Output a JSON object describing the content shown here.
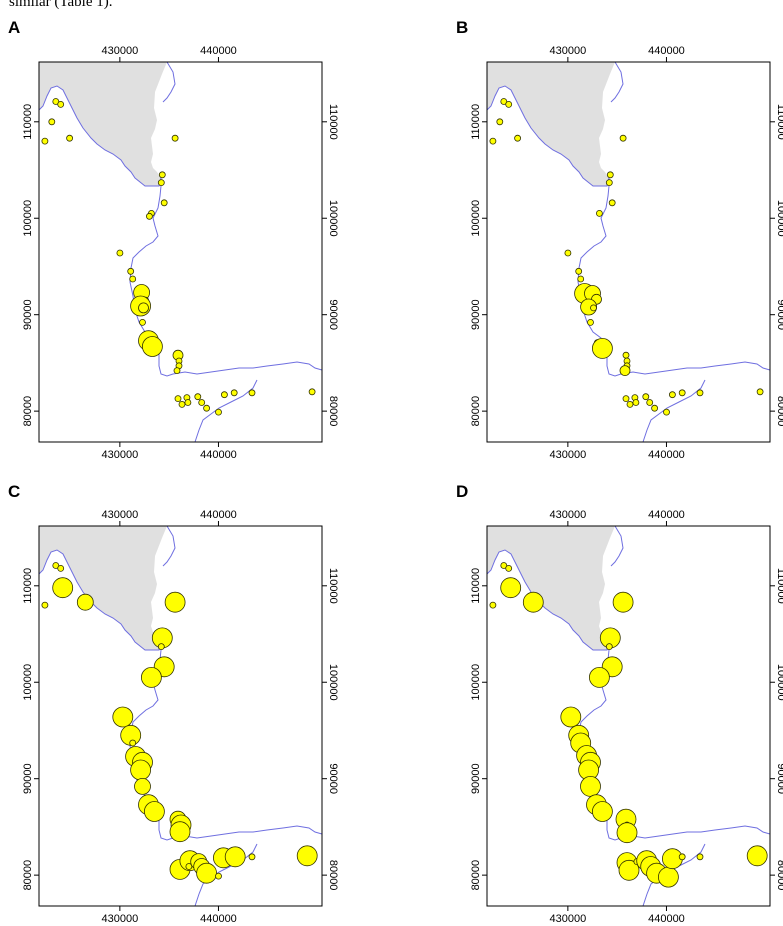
{
  "text": {
    "intro_fragment": "similar (Table 1)."
  },
  "colors": {
    "land": "#e0e0e0",
    "coast": "#6f6fe0",
    "point_fill": "#ffff00",
    "point_stroke": "#333300"
  },
  "axes": {
    "x_ticks": [
      "430000",
      "440000"
    ],
    "y_ticks": [
      "110000",
      "100000",
      "90000",
      "80000"
    ]
  },
  "chart_data": [
    {
      "type": "scatter",
      "panel_label": "A",
      "xlim": [
        421800,
        450500
      ],
      "ylim": [
        76800,
        116200
      ],
      "x_tick_values": [
        430000,
        440000
      ],
      "y_tick_values": [
        110000,
        100000,
        90000,
        80000
      ],
      "point_size_note": "symbol size proportional to value",
      "points": [
        {
          "x": 422400,
          "y": 108000,
          "s": 1
        },
        {
          "x": 423100,
          "y": 110000,
          "s": 1
        },
        {
          "x": 423500,
          "y": 112100,
          "s": 1
        },
        {
          "x": 424000,
          "y": 111800,
          "s": 1
        },
        {
          "x": 424900,
          "y": 108300,
          "s": 1
        },
        {
          "x": 435600,
          "y": 108300,
          "s": 1
        },
        {
          "x": 434300,
          "y": 104500,
          "s": 1
        },
        {
          "x": 434200,
          "y": 103700,
          "s": 1
        },
        {
          "x": 434500,
          "y": 101600,
          "s": 1
        },
        {
          "x": 433200,
          "y": 100500,
          "s": 1
        },
        {
          "x": 433000,
          "y": 100200,
          "s": 1
        },
        {
          "x": 430000,
          "y": 96400,
          "s": 1
        },
        {
          "x": 431100,
          "y": 94500,
          "s": 1
        },
        {
          "x": 431300,
          "y": 93700,
          "s": 1
        },
        {
          "x": 432200,
          "y": 92300,
          "s": 3
        },
        {
          "x": 432600,
          "y": 91500,
          "s": 1
        },
        {
          "x": 432100,
          "y": 90900,
          "s": 4
        },
        {
          "x": 432400,
          "y": 90700,
          "s": 2
        },
        {
          "x": 432300,
          "y": 89200,
          "s": 1
        },
        {
          "x": 432900,
          "y": 87300,
          "s": 4
        },
        {
          "x": 433300,
          "y": 86700,
          "s": 4
        },
        {
          "x": 435900,
          "y": 85800,
          "s": 2
        },
        {
          "x": 436000,
          "y": 85200,
          "s": 1
        },
        {
          "x": 436000,
          "y": 84700,
          "s": 1
        },
        {
          "x": 435800,
          "y": 84200,
          "s": 1
        },
        {
          "x": 435900,
          "y": 81300,
          "s": 1
        },
        {
          "x": 436300,
          "y": 80700,
          "s": 1
        },
        {
          "x": 436800,
          "y": 81400,
          "s": 1
        },
        {
          "x": 436900,
          "y": 80900,
          "s": 1
        },
        {
          "x": 437900,
          "y": 81500,
          "s": 1
        },
        {
          "x": 438300,
          "y": 80900,
          "s": 1
        },
        {
          "x": 438800,
          "y": 80300,
          "s": 1
        },
        {
          "x": 440000,
          "y": 79900,
          "s": 1
        },
        {
          "x": 440600,
          "y": 81700,
          "s": 1
        },
        {
          "x": 441600,
          "y": 81900,
          "s": 1
        },
        {
          "x": 443400,
          "y": 81900,
          "s": 1
        },
        {
          "x": 449500,
          "y": 82000,
          "s": 1
        }
      ]
    },
    {
      "type": "scatter",
      "panel_label": "B",
      "xlim": [
        421800,
        450500
      ],
      "ylim": [
        76800,
        116200
      ],
      "x_tick_values": [
        430000,
        440000
      ],
      "y_tick_values": [
        110000,
        100000,
        90000,
        80000
      ],
      "point_size_note": "symbol size proportional to value",
      "points": [
        {
          "x": 422400,
          "y": 108000,
          "s": 1
        },
        {
          "x": 423100,
          "y": 110000,
          "s": 1
        },
        {
          "x": 423500,
          "y": 112100,
          "s": 1
        },
        {
          "x": 424000,
          "y": 111800,
          "s": 1
        },
        {
          "x": 424900,
          "y": 108300,
          "s": 1
        },
        {
          "x": 435600,
          "y": 108300,
          "s": 1
        },
        {
          "x": 434300,
          "y": 104500,
          "s": 1
        },
        {
          "x": 434200,
          "y": 103700,
          "s": 1
        },
        {
          "x": 434500,
          "y": 101600,
          "s": 1
        },
        {
          "x": 433200,
          "y": 100500,
          "s": 1
        },
        {
          "x": 430000,
          "y": 96400,
          "s": 1
        },
        {
          "x": 431100,
          "y": 94500,
          "s": 1
        },
        {
          "x": 431300,
          "y": 93700,
          "s": 1
        },
        {
          "x": 431700,
          "y": 92200,
          "s": 4
        },
        {
          "x": 432500,
          "y": 92200,
          "s": 3
        },
        {
          "x": 432900,
          "y": 91600,
          "s": 2
        },
        {
          "x": 432100,
          "y": 90800,
          "s": 3
        },
        {
          "x": 432600,
          "y": 90700,
          "s": 1
        },
        {
          "x": 432300,
          "y": 89200,
          "s": 1
        },
        {
          "x": 433000,
          "y": 87100,
          "s": 1
        },
        {
          "x": 433500,
          "y": 86500,
          "s": 4
        },
        {
          "x": 435900,
          "y": 85800,
          "s": 1
        },
        {
          "x": 436000,
          "y": 85200,
          "s": 1
        },
        {
          "x": 436000,
          "y": 84700,
          "s": 1
        },
        {
          "x": 435800,
          "y": 84200,
          "s": 2
        },
        {
          "x": 435900,
          "y": 81300,
          "s": 1
        },
        {
          "x": 436300,
          "y": 80700,
          "s": 1
        },
        {
          "x": 436800,
          "y": 81400,
          "s": 1
        },
        {
          "x": 436900,
          "y": 80900,
          "s": 1
        },
        {
          "x": 437900,
          "y": 81500,
          "s": 1
        },
        {
          "x": 438300,
          "y": 80900,
          "s": 1
        },
        {
          "x": 438800,
          "y": 80300,
          "s": 1
        },
        {
          "x": 440000,
          "y": 79900,
          "s": 1
        },
        {
          "x": 440600,
          "y": 81700,
          "s": 1
        },
        {
          "x": 441600,
          "y": 81900,
          "s": 1
        },
        {
          "x": 443400,
          "y": 81900,
          "s": 1
        },
        {
          "x": 449500,
          "y": 82000,
          "s": 1
        }
      ]
    },
    {
      "type": "scatter",
      "panel_label": "C",
      "xlim": [
        421800,
        450500
      ],
      "ylim": [
        76800,
        116200
      ],
      "x_tick_values": [
        430000,
        440000
      ],
      "y_tick_values": [
        110000,
        100000,
        90000,
        80000
      ],
      "point_size_note": "symbol size proportional to value",
      "points": [
        {
          "x": 422400,
          "y": 108000,
          "s": 1
        },
        {
          "x": 424200,
          "y": 109800,
          "s": 4
        },
        {
          "x": 423500,
          "y": 112100,
          "s": 1
        },
        {
          "x": 424000,
          "y": 111800,
          "s": 1
        },
        {
          "x": 426500,
          "y": 108300,
          "s": 3
        },
        {
          "x": 435600,
          "y": 108300,
          "s": 4
        },
        {
          "x": 434300,
          "y": 104600,
          "s": 4
        },
        {
          "x": 434200,
          "y": 103700,
          "s": 1
        },
        {
          "x": 434500,
          "y": 101600,
          "s": 4
        },
        {
          "x": 433200,
          "y": 100500,
          "s": 4
        },
        {
          "x": 430300,
          "y": 96400,
          "s": 4
        },
        {
          "x": 431100,
          "y": 94500,
          "s": 4
        },
        {
          "x": 431300,
          "y": 93700,
          "s": 1
        },
        {
          "x": 431600,
          "y": 92300,
          "s": 4
        },
        {
          "x": 432300,
          "y": 91700,
          "s": 4
        },
        {
          "x": 432100,
          "y": 90900,
          "s": 4
        },
        {
          "x": 432300,
          "y": 89200,
          "s": 3
        },
        {
          "x": 432900,
          "y": 87300,
          "s": 4
        },
        {
          "x": 433500,
          "y": 86600,
          "s": 4
        },
        {
          "x": 435900,
          "y": 85800,
          "s": 3
        },
        {
          "x": 436200,
          "y": 85200,
          "s": 4
        },
        {
          "x": 436100,
          "y": 84500,
          "s": 4
        },
        {
          "x": 436100,
          "y": 80600,
          "s": 4
        },
        {
          "x": 437100,
          "y": 81500,
          "s": 4
        },
        {
          "x": 437000,
          "y": 80900,
          "s": 1
        },
        {
          "x": 438000,
          "y": 81400,
          "s": 3
        },
        {
          "x": 438300,
          "y": 80900,
          "s": 3
        },
        {
          "x": 438800,
          "y": 80200,
          "s": 4
        },
        {
          "x": 440000,
          "y": 79900,
          "s": 1
        },
        {
          "x": 440500,
          "y": 81800,
          "s": 4
        },
        {
          "x": 441700,
          "y": 81900,
          "s": 4
        },
        {
          "x": 443400,
          "y": 81900,
          "s": 1
        },
        {
          "x": 449000,
          "y": 82000,
          "s": 4
        }
      ]
    },
    {
      "type": "scatter",
      "panel_label": "D",
      "xlim": [
        421800,
        450500
      ],
      "ylim": [
        76800,
        116200
      ],
      "x_tick_values": [
        430000,
        440000
      ],
      "y_tick_values": [
        110000,
        100000,
        90000,
        80000
      ],
      "point_size_note": "symbol size proportional to value",
      "points": [
        {
          "x": 422400,
          "y": 108000,
          "s": 1
        },
        {
          "x": 424200,
          "y": 109800,
          "s": 4
        },
        {
          "x": 423500,
          "y": 112100,
          "s": 1
        },
        {
          "x": 424000,
          "y": 111800,
          "s": 1
        },
        {
          "x": 426500,
          "y": 108300,
          "s": 4
        },
        {
          "x": 435600,
          "y": 108300,
          "s": 4
        },
        {
          "x": 434300,
          "y": 104600,
          "s": 4
        },
        {
          "x": 434200,
          "y": 103700,
          "s": 1
        },
        {
          "x": 434500,
          "y": 101600,
          "s": 4
        },
        {
          "x": 433200,
          "y": 100500,
          "s": 4
        },
        {
          "x": 430300,
          "y": 96400,
          "s": 4
        },
        {
          "x": 431100,
          "y": 94500,
          "s": 4
        },
        {
          "x": 431300,
          "y": 93700,
          "s": 4
        },
        {
          "x": 431900,
          "y": 92400,
          "s": 4
        },
        {
          "x": 432300,
          "y": 91700,
          "s": 4
        },
        {
          "x": 432100,
          "y": 90900,
          "s": 4
        },
        {
          "x": 432300,
          "y": 89200,
          "s": 4
        },
        {
          "x": 432900,
          "y": 87300,
          "s": 4
        },
        {
          "x": 433500,
          "y": 86600,
          "s": 4
        },
        {
          "x": 435900,
          "y": 85800,
          "s": 4
        },
        {
          "x": 436000,
          "y": 85200,
          "s": 1
        },
        {
          "x": 436000,
          "y": 84400,
          "s": 4
        },
        {
          "x": 436000,
          "y": 81300,
          "s": 4
        },
        {
          "x": 436200,
          "y": 80500,
          "s": 4
        },
        {
          "x": 437000,
          "y": 81400,
          "s": 1
        },
        {
          "x": 438000,
          "y": 81500,
          "s": 4
        },
        {
          "x": 438400,
          "y": 80900,
          "s": 4
        },
        {
          "x": 439000,
          "y": 80200,
          "s": 4
        },
        {
          "x": 440200,
          "y": 79800,
          "s": 4
        },
        {
          "x": 440600,
          "y": 81700,
          "s": 4
        },
        {
          "x": 441600,
          "y": 81900,
          "s": 1
        },
        {
          "x": 443400,
          "y": 81900,
          "s": 1
        },
        {
          "x": 449200,
          "y": 82000,
          "s": 4
        }
      ]
    }
  ]
}
